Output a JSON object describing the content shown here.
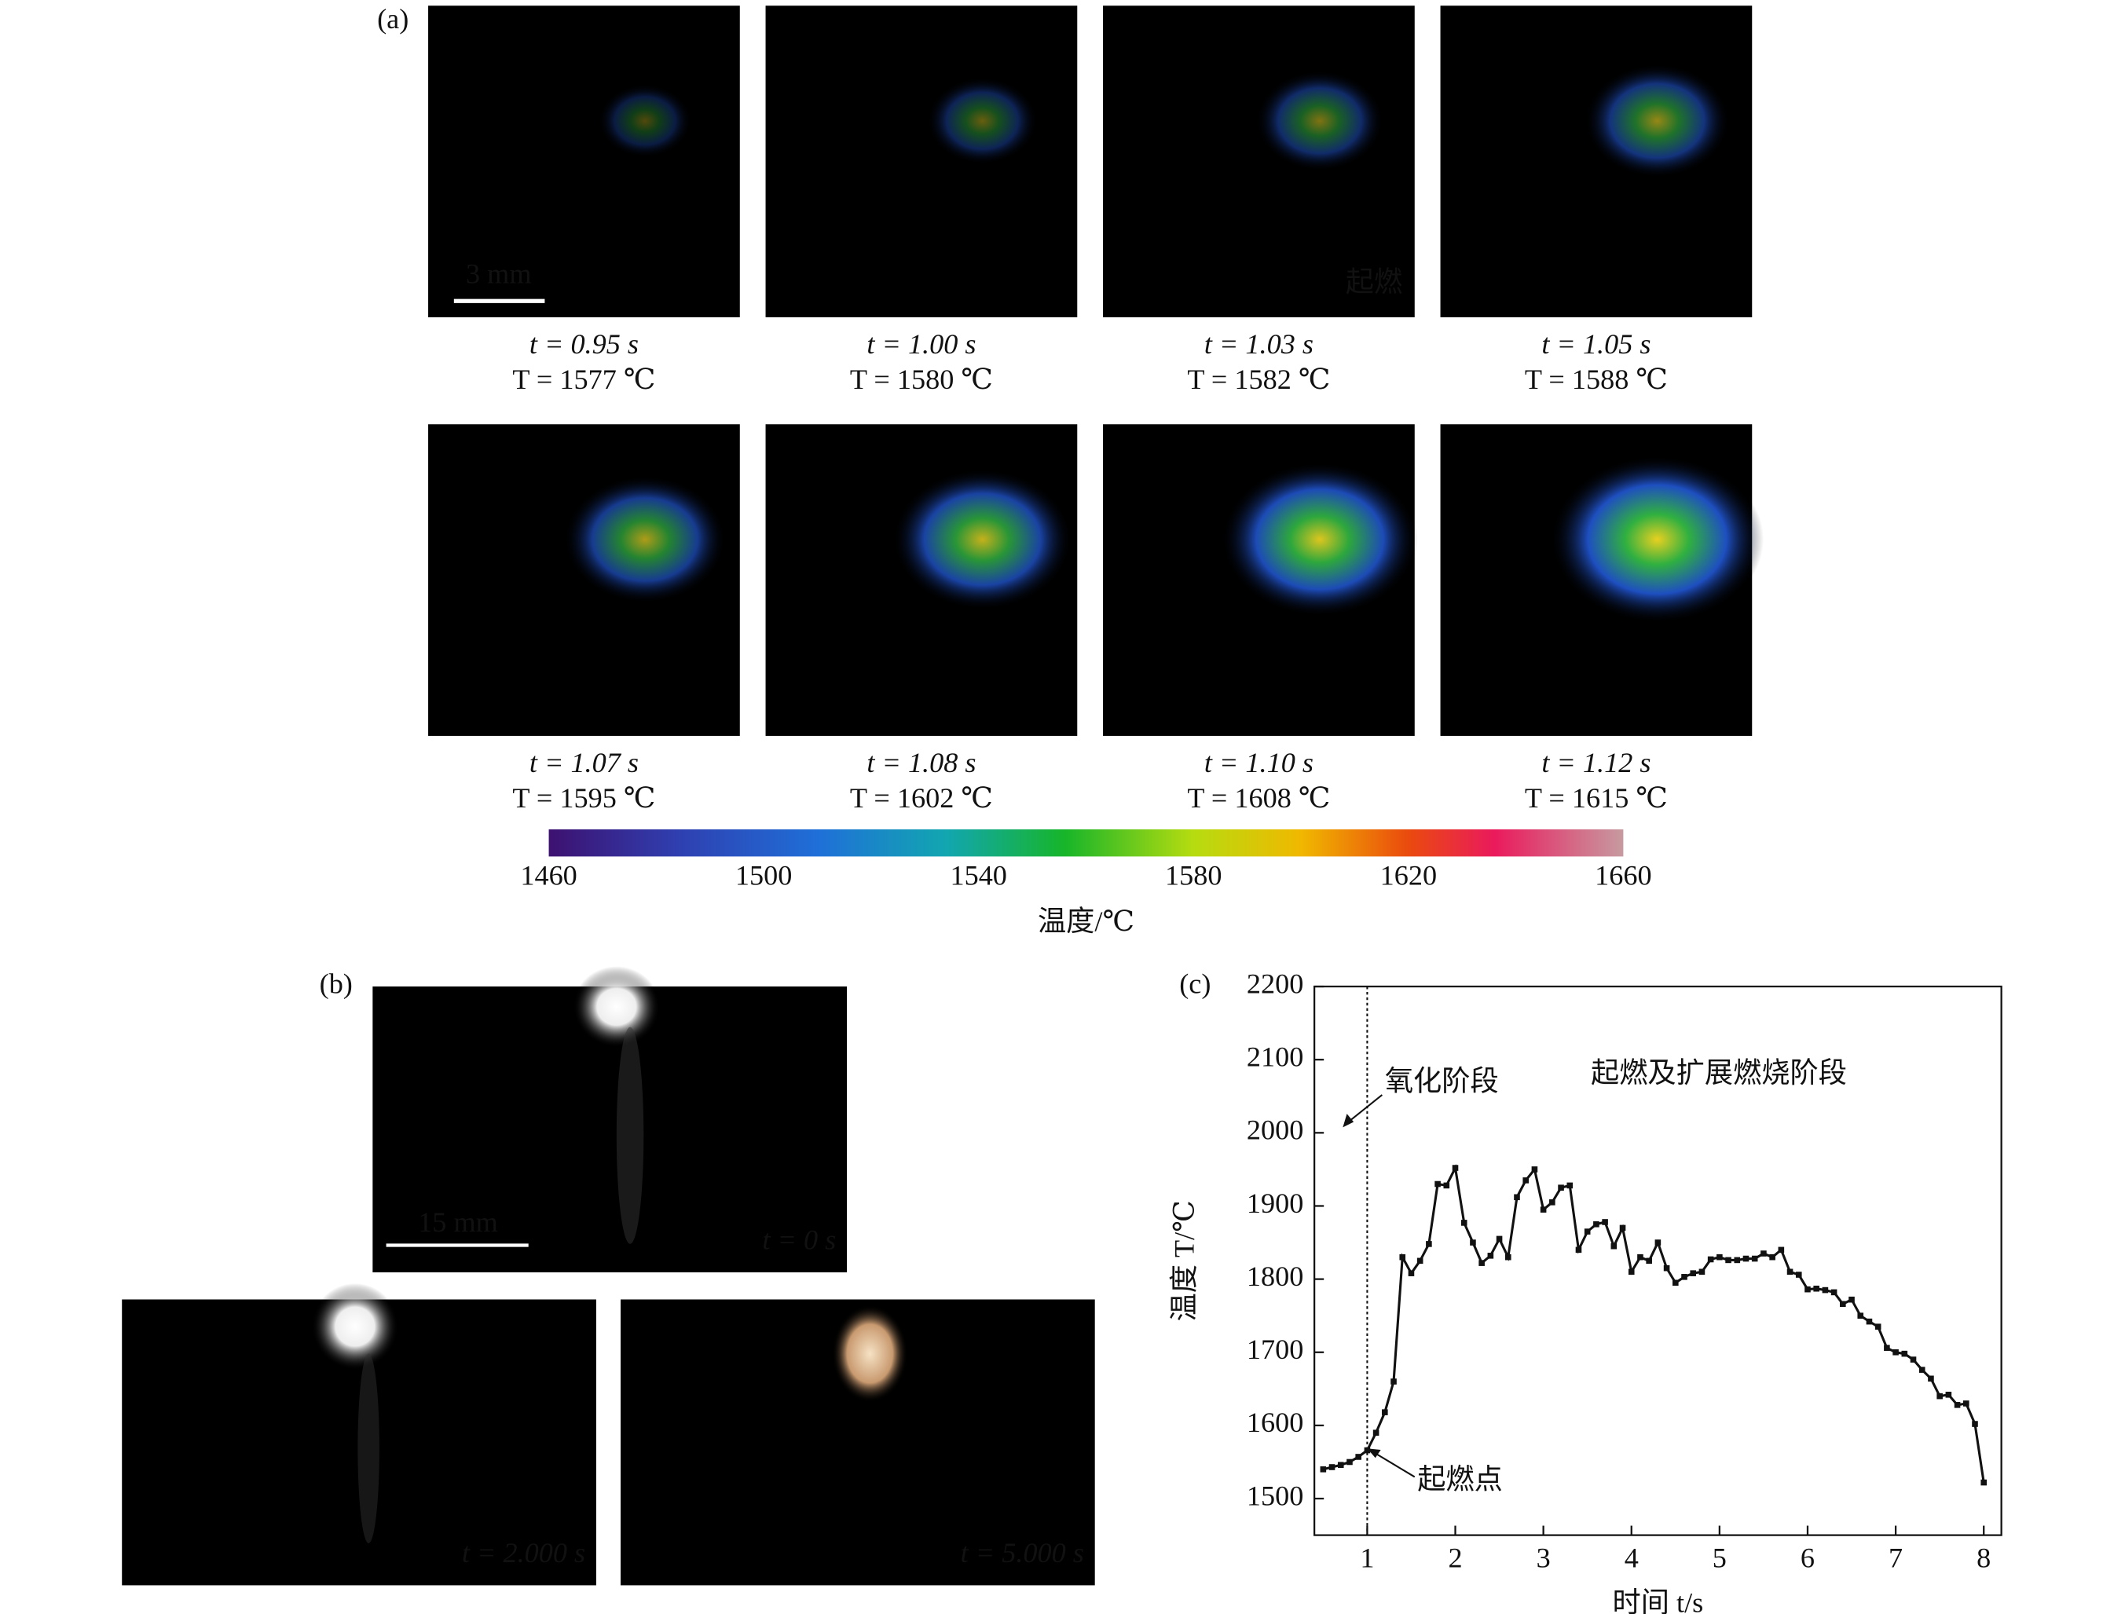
{
  "panel_a": {
    "label": "(a)",
    "scale_bar": "3 mm",
    "ignition_tag": "起燃",
    "frames": [
      {
        "t": "t = 0.95 s",
        "T": "T = 1577 ℃"
      },
      {
        "t": "t = 1.00 s",
        "T": "T = 1580 ℃"
      },
      {
        "t": "t = 1.03 s",
        "T": "T = 1582 ℃",
        "color": "#e3211c"
      },
      {
        "t": "t = 1.05 s",
        "T": "T = 1588 ℃"
      },
      {
        "t": "t = 1.07 s",
        "T": "T = 1595 ℃"
      },
      {
        "t": "t = 1.08 s",
        "T": "T = 1602 ℃"
      },
      {
        "t": "t = 1.10 s",
        "T": "T = 1608 ℃"
      },
      {
        "t": "t = 1.12 s",
        "T": "T = 1615 ℃"
      }
    ],
    "colorbar": {
      "ticks": [
        1460,
        1500,
        1540,
        1580,
        1620,
        1660
      ],
      "label": "温度/℃"
    }
  },
  "panel_b": {
    "label": "(b)",
    "scale_bar": "15 mm",
    "frames": [
      "t = 0 s",
      "t = 2.000 s",
      "t = 5.000 s"
    ]
  },
  "chart_data": {
    "type": "line",
    "panel_label": "(c)",
    "xlabel": "时间 t/s",
    "ylabel": "温度 T/℃",
    "annotations": [
      "氧化阶段",
      "起燃及扩展燃烧阶段",
      "起燃点"
    ],
    "ignition_x": 1,
    "xlim": [
      0.4,
      8.2
    ],
    "ylim": [
      1450,
      2200
    ],
    "xticks": [
      1,
      2,
      3,
      4,
      5,
      6,
      7,
      8
    ],
    "yticks": [
      1500,
      1600,
      1700,
      1800,
      1900,
      2000,
      2100,
      2200
    ],
    "x": [
      0.5,
      0.6,
      0.7,
      0.8,
      0.9,
      1.0,
      1.1,
      1.2,
      1.3,
      1.4,
      1.5,
      1.6,
      1.7,
      1.8,
      1.9,
      2.0,
      2.1,
      2.2,
      2.3,
      2.4,
      2.5,
      2.6,
      2.7,
      2.8,
      2.9,
      3.0,
      3.1,
      3.2,
      3.3,
      3.4,
      3.5,
      3.6,
      3.7,
      3.8,
      3.9,
      4.0,
      4.1,
      4.2,
      4.3,
      4.4,
      4.5,
      4.6,
      4.7,
      4.8,
      4.9,
      5.0,
      5.1,
      5.2,
      5.3,
      5.4,
      5.5,
      5.6,
      5.7,
      5.8,
      5.9,
      6.0,
      6.1,
      6.2,
      6.3,
      6.4,
      6.5,
      6.6,
      6.7,
      6.8,
      6.9,
      7.0,
      7.1,
      7.2,
      7.3,
      7.4,
      7.5,
      7.6,
      7.7,
      7.8,
      7.9,
      8.0
    ],
    "series": [
      {
        "color": "#111111",
        "values": [
          1540,
          1543,
          1546,
          1550,
          1557,
          1566,
          1590,
          1618,
          1660,
          1830,
          1808,
          1825,
          1848,
          1930,
          1928,
          1952,
          1877,
          1850,
          1822,
          1832,
          1855,
          1830,
          1912,
          1935,
          1950,
          1895,
          1905,
          1925,
          1928,
          1840,
          1865,
          1875,
          1878,
          1845,
          1870,
          1810,
          1830,
          1825,
          1850,
          1815,
          1795,
          1803,
          1808,
          1810,
          1827,
          1830,
          1826,
          1826,
          1828,
          1828,
          1835,
          1830,
          1840,
          1810,
          1806,
          1786,
          1787,
          1785,
          1782,
          1766,
          1772,
          1750,
          1742,
          1735,
          1706,
          1700,
          1698,
          1690,
          1676,
          1664,
          1640,
          1642,
          1628,
          1630,
          1602,
          1522
        ]
      }
    ]
  }
}
